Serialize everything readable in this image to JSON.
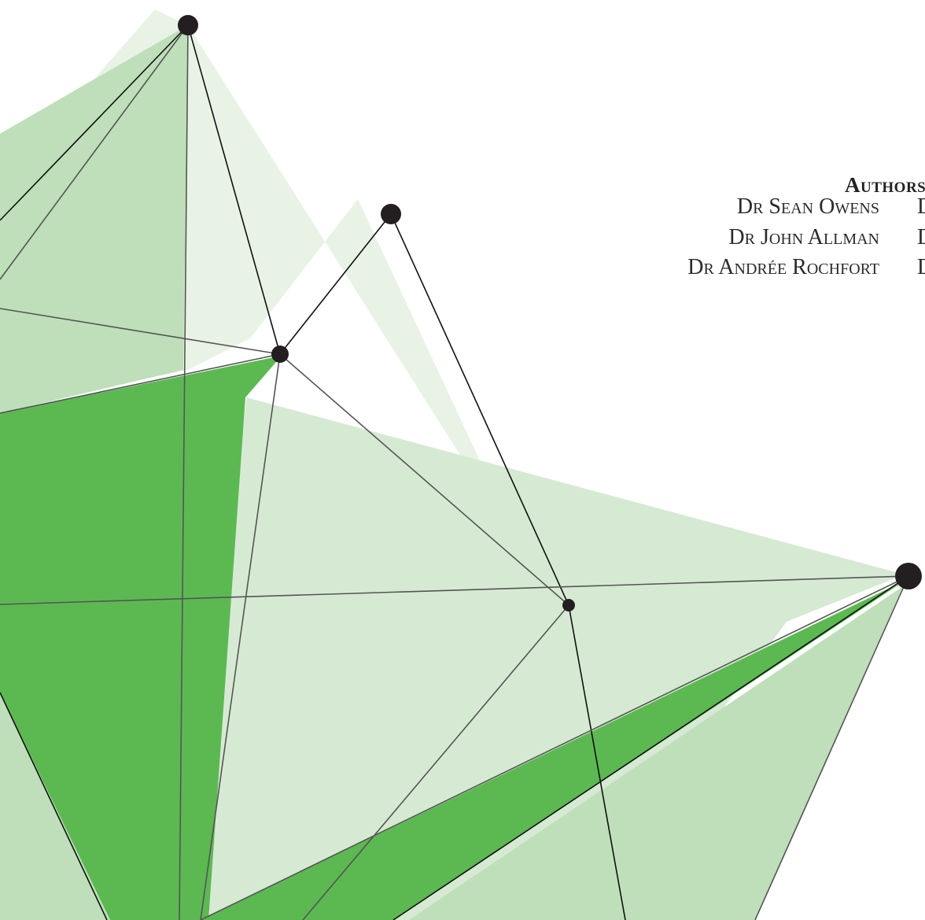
{
  "authors": {
    "heading": "Authors",
    "names": [
      "Dr Sean Owens",
      "Dr John Allman",
      "Dr Andrée Rochfort"
    ],
    "names_second_column": [
      "D",
      "D",
      "D"
    ]
  }
}
